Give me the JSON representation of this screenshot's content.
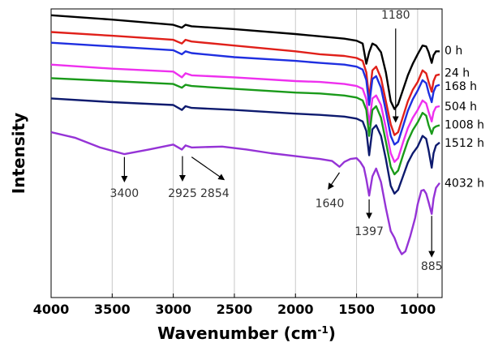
{
  "chart_data": {
    "type": "line",
    "xlabel": "Wavenumber (cm",
    "xlabel_sup": "-1",
    "xlabel_end": ")",
    "ylabel": "Intensity",
    "xlim": [
      4000,
      800
    ],
    "ylim": [
      0,
      1
    ],
    "x_reversed": true,
    "grid": "vertical",
    "legend": "inline labels at right end of each trace",
    "x_ticks": [
      {
        "value": 4000,
        "label": "4000"
      },
      {
        "value": 3500,
        "label": "3500"
      },
      {
        "value": 3000,
        "label": "3000"
      },
      {
        "value": 2500,
        "label": "2500"
      },
      {
        "value": 2000,
        "label": "2000"
      },
      {
        "value": 1500,
        "label": "1500"
      },
      {
        "value": 1000,
        "label": "1000"
      }
    ],
    "series": [
      {
        "name": "0 h",
        "color": "#000000",
        "label_y": 0.857,
        "points": [
          [
            4000,
            0.978
          ],
          [
            3500,
            0.963
          ],
          [
            3000,
            0.945
          ],
          [
            2930,
            0.935
          ],
          [
            2900,
            0.945
          ],
          [
            2850,
            0.94
          ],
          [
            2500,
            0.93
          ],
          [
            2000,
            0.913
          ],
          [
            1800,
            0.905
          ],
          [
            1600,
            0.897
          ],
          [
            1500,
            0.89
          ],
          [
            1450,
            0.88
          ],
          [
            1420,
            0.81
          ],
          [
            1397,
            0.85
          ],
          [
            1370,
            0.88
          ],
          [
            1340,
            0.873
          ],
          [
            1300,
            0.85
          ],
          [
            1260,
            0.78
          ],
          [
            1220,
            0.68
          ],
          [
            1190,
            0.653
          ],
          [
            1160,
            0.67
          ],
          [
            1120,
            0.72
          ],
          [
            1080,
            0.77
          ],
          [
            1040,
            0.81
          ],
          [
            1000,
            0.843
          ],
          [
            960,
            0.873
          ],
          [
            930,
            0.87
          ],
          [
            910,
            0.85
          ],
          [
            885,
            0.813
          ],
          [
            870,
            0.84
          ],
          [
            850,
            0.853
          ],
          [
            820,
            0.853
          ]
        ]
      },
      {
        "name": "24 h",
        "color": "#e0201a",
        "label_y": 0.78,
        "points": [
          [
            4000,
            0.92
          ],
          [
            3500,
            0.907
          ],
          [
            3000,
            0.893
          ],
          [
            2930,
            0.88
          ],
          [
            2900,
            0.893
          ],
          [
            2850,
            0.887
          ],
          [
            2500,
            0.873
          ],
          [
            2000,
            0.853
          ],
          [
            1800,
            0.843
          ],
          [
            1600,
            0.837
          ],
          [
            1500,
            0.83
          ],
          [
            1450,
            0.82
          ],
          [
            1420,
            0.78
          ],
          [
            1397,
            0.69
          ],
          [
            1370,
            0.787
          ],
          [
            1340,
            0.8
          ],
          [
            1300,
            0.76
          ],
          [
            1260,
            0.68
          ],
          [
            1220,
            0.6
          ],
          [
            1190,
            0.563
          ],
          [
            1160,
            0.573
          ],
          [
            1120,
            0.627
          ],
          [
            1080,
            0.68
          ],
          [
            1040,
            0.72
          ],
          [
            1000,
            0.747
          ],
          [
            960,
            0.787
          ],
          [
            930,
            0.777
          ],
          [
            910,
            0.747
          ],
          [
            885,
            0.713
          ],
          [
            870,
            0.75
          ],
          [
            850,
            0.77
          ],
          [
            820,
            0.773
          ]
        ]
      },
      {
        "name": "168 h",
        "color": "#1f2fe0",
        "label_y": 0.733,
        "points": [
          [
            4000,
            0.883
          ],
          [
            3500,
            0.87
          ],
          [
            3000,
            0.857
          ],
          [
            2930,
            0.843
          ],
          [
            2900,
            0.853
          ],
          [
            2850,
            0.847
          ],
          [
            2500,
            0.833
          ],
          [
            2000,
            0.82
          ],
          [
            1800,
            0.813
          ],
          [
            1600,
            0.807
          ],
          [
            1500,
            0.8
          ],
          [
            1450,
            0.79
          ],
          [
            1420,
            0.753
          ],
          [
            1397,
            0.667
          ],
          [
            1370,
            0.757
          ],
          [
            1340,
            0.767
          ],
          [
            1300,
            0.727
          ],
          [
            1260,
            0.647
          ],
          [
            1220,
            0.56
          ],
          [
            1190,
            0.53
          ],
          [
            1160,
            0.54
          ],
          [
            1120,
            0.593
          ],
          [
            1080,
            0.647
          ],
          [
            1040,
            0.687
          ],
          [
            1000,
            0.717
          ],
          [
            960,
            0.753
          ],
          [
            930,
            0.743
          ],
          [
            910,
            0.71
          ],
          [
            885,
            0.677
          ],
          [
            870,
            0.713
          ],
          [
            850,
            0.733
          ],
          [
            820,
            0.737
          ]
        ]
      },
      {
        "name": "504 h",
        "color": "#ee30ee",
        "label_y": 0.663,
        "points": [
          [
            4000,
            0.807
          ],
          [
            3500,
            0.793
          ],
          [
            3000,
            0.783
          ],
          [
            2930,
            0.763
          ],
          [
            2900,
            0.777
          ],
          [
            2850,
            0.77
          ],
          [
            2500,
            0.763
          ],
          [
            2000,
            0.75
          ],
          [
            1800,
            0.747
          ],
          [
            1600,
            0.74
          ],
          [
            1500,
            0.733
          ],
          [
            1450,
            0.723
          ],
          [
            1420,
            0.687
          ],
          [
            1397,
            0.6
          ],
          [
            1370,
            0.69
          ],
          [
            1340,
            0.7
          ],
          [
            1300,
            0.667
          ],
          [
            1260,
            0.587
          ],
          [
            1220,
            0.5
          ],
          [
            1190,
            0.47
          ],
          [
            1160,
            0.483
          ],
          [
            1120,
            0.537
          ],
          [
            1080,
            0.587
          ],
          [
            1040,
            0.623
          ],
          [
            1000,
            0.65
          ],
          [
            960,
            0.683
          ],
          [
            930,
            0.673
          ],
          [
            910,
            0.643
          ],
          [
            885,
            0.61
          ],
          [
            870,
            0.643
          ],
          [
            850,
            0.66
          ],
          [
            820,
            0.663
          ]
        ]
      },
      {
        "name": "1008 h",
        "color": "#1a9a1a",
        "label_y": 0.6,
        "points": [
          [
            4000,
            0.76
          ],
          [
            3500,
            0.75
          ],
          [
            3000,
            0.74
          ],
          [
            2930,
            0.727
          ],
          [
            2900,
            0.737
          ],
          [
            2850,
            0.733
          ],
          [
            2500,
            0.723
          ],
          [
            2000,
            0.71
          ],
          [
            1800,
            0.707
          ],
          [
            1600,
            0.7
          ],
          [
            1500,
            0.693
          ],
          [
            1450,
            0.683
          ],
          [
            1420,
            0.65
          ],
          [
            1397,
            0.56
          ],
          [
            1370,
            0.65
          ],
          [
            1340,
            0.663
          ],
          [
            1300,
            0.623
          ],
          [
            1260,
            0.54
          ],
          [
            1220,
            0.453
          ],
          [
            1190,
            0.427
          ],
          [
            1160,
            0.44
          ],
          [
            1120,
            0.493
          ],
          [
            1080,
            0.543
          ],
          [
            1040,
            0.58
          ],
          [
            1000,
            0.607
          ],
          [
            960,
            0.64
          ],
          [
            930,
            0.63
          ],
          [
            910,
            0.597
          ],
          [
            885,
            0.567
          ],
          [
            870,
            0.587
          ],
          [
            850,
            0.593
          ],
          [
            820,
            0.597
          ]
        ]
      },
      {
        "name": "1512 h",
        "color": "#0d1a6e",
        "label_y": 0.537,
        "points": [
          [
            4000,
            0.69
          ],
          [
            3500,
            0.677
          ],
          [
            3000,
            0.667
          ],
          [
            2930,
            0.65
          ],
          [
            2900,
            0.663
          ],
          [
            2850,
            0.657
          ],
          [
            2500,
            0.65
          ],
          [
            2000,
            0.637
          ],
          [
            1800,
            0.633
          ],
          [
            1600,
            0.627
          ],
          [
            1500,
            0.62
          ],
          [
            1450,
            0.61
          ],
          [
            1420,
            0.577
          ],
          [
            1397,
            0.493
          ],
          [
            1370,
            0.583
          ],
          [
            1340,
            0.597
          ],
          [
            1300,
            0.56
          ],
          [
            1260,
            0.48
          ],
          [
            1220,
            0.387
          ],
          [
            1190,
            0.36
          ],
          [
            1160,
            0.373
          ],
          [
            1120,
            0.42
          ],
          [
            1080,
            0.467
          ],
          [
            1040,
            0.5
          ],
          [
            1000,
            0.523
          ],
          [
            960,
            0.56
          ],
          [
            930,
            0.55
          ],
          [
            910,
            0.51
          ],
          [
            885,
            0.45
          ],
          [
            870,
            0.5
          ],
          [
            850,
            0.527
          ],
          [
            820,
            0.537
          ]
        ]
      },
      {
        "name": "4032 h",
        "color": "#9533d6",
        "label_y": 0.397,
        "points": [
          [
            4000,
            0.573
          ],
          [
            3800,
            0.553
          ],
          [
            3600,
            0.52
          ],
          [
            3400,
            0.497
          ],
          [
            3200,
            0.513
          ],
          [
            3000,
            0.53
          ],
          [
            2930,
            0.513
          ],
          [
            2900,
            0.527
          ],
          [
            2850,
            0.52
          ],
          [
            2600,
            0.523
          ],
          [
            2400,
            0.513
          ],
          [
            2200,
            0.5
          ],
          [
            2000,
            0.49
          ],
          [
            1800,
            0.48
          ],
          [
            1700,
            0.473
          ],
          [
            1640,
            0.453
          ],
          [
            1600,
            0.47
          ],
          [
            1550,
            0.48
          ],
          [
            1500,
            0.483
          ],
          [
            1470,
            0.47
          ],
          [
            1440,
            0.45
          ],
          [
            1420,
            0.41
          ],
          [
            1397,
            0.353
          ],
          [
            1370,
            0.42
          ],
          [
            1340,
            0.447
          ],
          [
            1300,
            0.4
          ],
          [
            1260,
            0.31
          ],
          [
            1220,
            0.23
          ],
          [
            1190,
            0.207
          ],
          [
            1160,
            0.173
          ],
          [
            1130,
            0.15
          ],
          [
            1100,
            0.16
          ],
          [
            1060,
            0.213
          ],
          [
            1020,
            0.277
          ],
          [
            1000,
            0.323
          ],
          [
            970,
            0.37
          ],
          [
            950,
            0.373
          ],
          [
            930,
            0.36
          ],
          [
            910,
            0.33
          ],
          [
            885,
            0.29
          ],
          [
            870,
            0.343
          ],
          [
            850,
            0.38
          ],
          [
            820,
            0.397
          ]
        ]
      }
    ],
    "annotations": [
      {
        "text": "1180",
        "x": 1180,
        "text_y": 0.98,
        "arrow_from": 0.932,
        "arrow_to": 0.617
      },
      {
        "text": "3400",
        "x": 3400,
        "text_y": 0.363,
        "arrow_from": 0.487,
        "arrow_to": 0.41
      },
      {
        "text": "2925",
        "x": 2925,
        "text_y": 0.363,
        "arrow_from": 0.49,
        "arrow_to": 0.413
      },
      {
        "text": "2854",
        "x": 2660,
        "text_y": 0.363,
        "arrow_from": 0.487,
        "arrow_to": 0.413,
        "arrow_from_x": 2850,
        "arrow_to_x": 2600
      },
      {
        "text": "1640",
        "x": 1720,
        "text_y": 0.327,
        "arrow_from": 0.433,
        "arrow_to": 0.383,
        "arrow_from_x": 1640,
        "arrow_to_x": 1720
      },
      {
        "text": "1397",
        "x": 1397,
        "text_y": 0.23,
        "arrow_from": 0.34,
        "arrow_to": 0.283
      },
      {
        "text": "885",
        "x": 885,
        "text_y": 0.11,
        "arrow_from": 0.283,
        "arrow_to": 0.15
      }
    ]
  }
}
